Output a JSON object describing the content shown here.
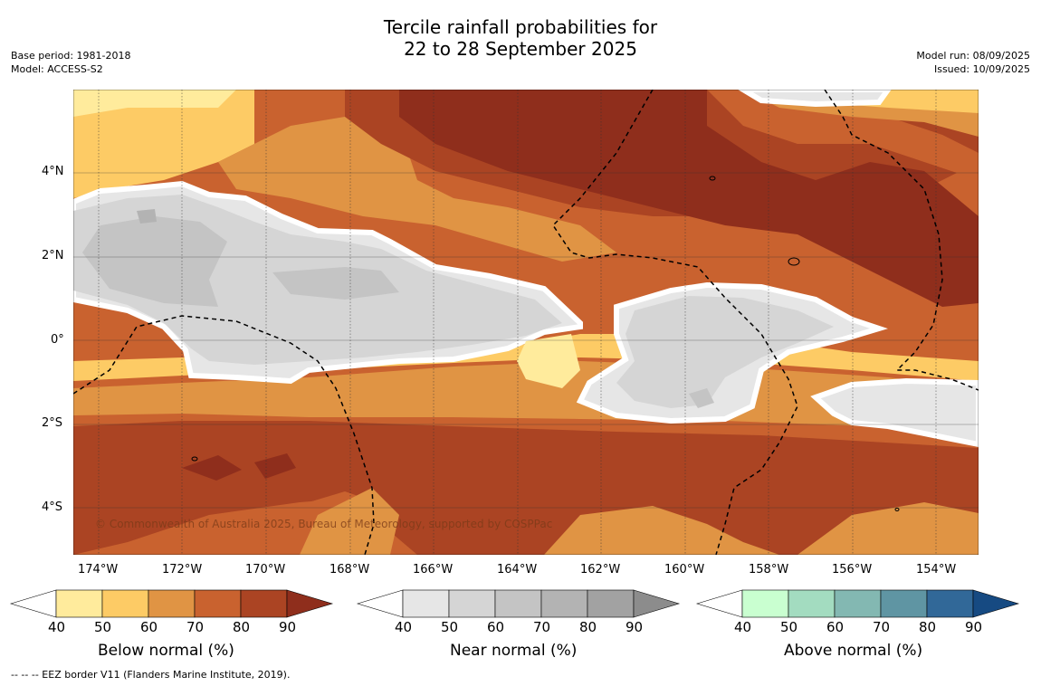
{
  "title": {
    "line1": "Tercile rainfall probabilities for",
    "line2": "22 to 28 September 2025"
  },
  "meta_left": {
    "base_period": "Base period: 1981-2018",
    "model": "Model: ACCESS-S2"
  },
  "meta_right": {
    "model_run": "Model run: 08/09/2025",
    "issued": "Issued: 10/09/2025"
  },
  "map": {
    "lat_labels": [
      "4°N",
      "2°N",
      "0°",
      "2°S",
      "4°S"
    ],
    "lon_labels": [
      "174°W",
      "172°W",
      "170°W",
      "168°W",
      "166°W",
      "164°W",
      "162°W",
      "160°W",
      "158°W",
      "156°W",
      "154°W"
    ],
    "copyright": "© Commonwealth of Australia 2025, Bureau of Meteorology, supported by COSPPac"
  },
  "colorbars": [
    {
      "title": "Below normal (%)",
      "ticks": [
        "40",
        "50",
        "60",
        "70",
        "80",
        "90"
      ],
      "colors": [
        "#ffffff",
        "#ffeb9c",
        "#fdcb65",
        "#e09444",
        "#c9622f",
        "#ab4423",
        "#8f2e1c"
      ]
    },
    {
      "title": "Near normal (%)",
      "ticks": [
        "40",
        "50",
        "60",
        "70",
        "80",
        "90"
      ],
      "colors": [
        "#ffffff",
        "#e6e6e6",
        "#d5d5d5",
        "#c4c4c4",
        "#b3b3b3",
        "#a2a2a2",
        "#8c8c8c"
      ]
    },
    {
      "title": "Above normal (%)",
      "ticks": [
        "40",
        "50",
        "60",
        "70",
        "80",
        "90"
      ],
      "colors": [
        "#ffffff",
        "#c9ffd0",
        "#a3dcc0",
        "#83b8b2",
        "#5f95a3",
        "#316898",
        "#164a82"
      ]
    }
  ],
  "footnote": "--  --  -- EEZ border V11 (Flanders Marine Institute, 2019)."
}
